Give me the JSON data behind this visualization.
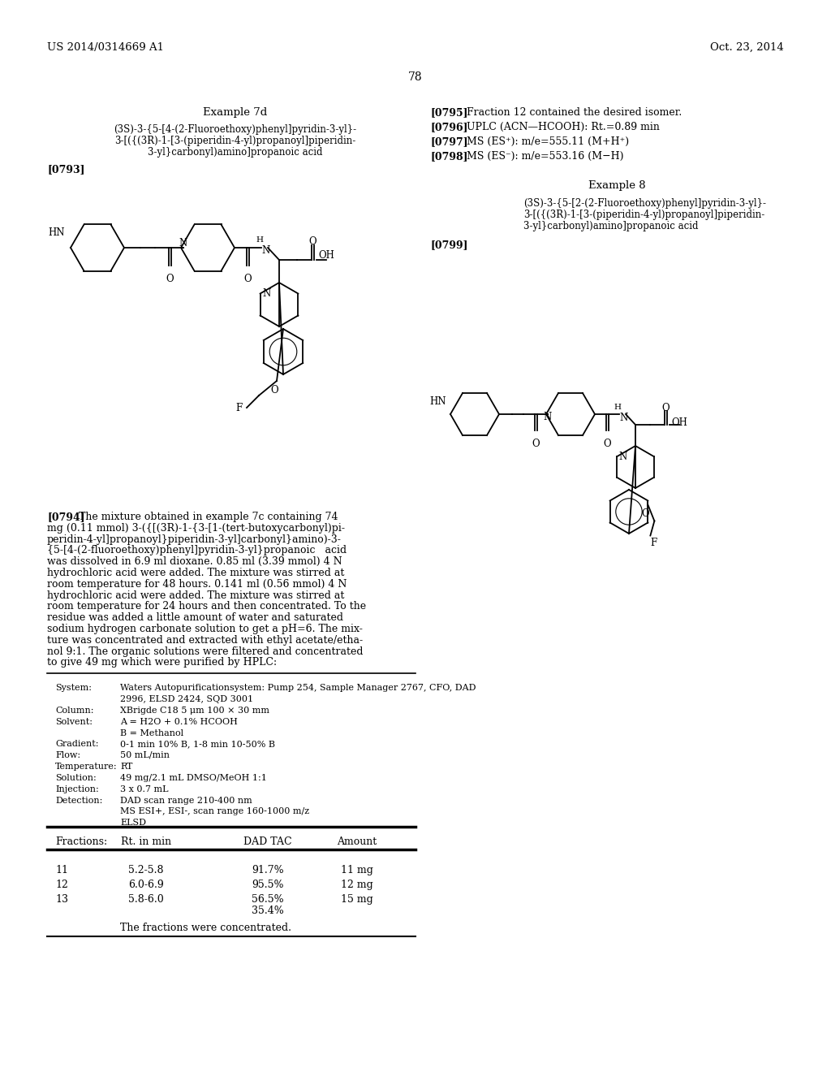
{
  "page_header_left": "US 2014/0314669 A1",
  "page_header_right": "Oct. 23, 2014",
  "page_number": "78",
  "example7d_title": "Example 7d",
  "example7d_line1": "(3S)-3-{5-[4-(2-Fluoroethoxy)phenyl]pyridin-3-yl}-",
  "example7d_line2": "3-[({(3R)-1-[3-(piperidin-4-yl)propanoyl]piperidin-",
  "example7d_line3": "3-yl}carbonyl)amino]propanoic acid",
  "ref793": "[0793]",
  "ref795_bold": "[0795]",
  "ref795_text": "   Fraction 12 contained the desired isomer.",
  "ref796_bold": "[0796]",
  "ref796_text": "   UPLC (ACN—HCOOH): Rt.=0.89 min",
  "ref797_bold": "[0797]",
  "ref797_text": "   MS (ES+): m/e=555.11 (M+H+)",
  "ref798_bold": "[0798]",
  "ref798_text": "   MS (ES-): m/e=553.16 (M-H)",
  "example8_title": "Example 8",
  "example8_line1": "(3S)-3-{5-[2-(2-Fluoroethoxy)phenyl]pyridin-3-yl}-",
  "example8_line2": "3-[({(3R)-1-[3-(piperidin-4-yl)propanoyl]piperidin-",
  "example8_line3": "3-yl}carbonyl)amino]propanoic acid",
  "ref799": "[0799]",
  "ref794_bold": "[0794]",
  "ref794_lines": [
    "  The mixture obtained in example 7c containing 74",
    "mg (0.11 mmol) 3-({[(3R)-1-{3-[1-(tert-butoxycarbonyl)pi-",
    "peridin-4-yl]propanoyl}piperidin-3-yl]carbonyl}amino)-3-",
    "{5-[4-(2-fluoroethoxy)phenyl]pyridin-3-yl}propanoic   acid",
    "was dissolved in 6.9 ml dioxane. 0.85 ml (3.39 mmol) 4 N",
    "hydrochloric acid were added. The mixture was stirred at",
    "room temperature for 48 hours. 0.141 ml (0.56 mmol) 4 N",
    "hydrochloric acid were added. The mixture was stirred at",
    "room temperature for 24 hours and then concentrated. To the",
    "residue was added a little amount of water and saturated",
    "sodium hydrogen carbonate solution to get a pH=6. The mix-",
    "ture was concentrated and extracted with ethyl acetate/etha-",
    "nol 9:1. The organic solutions were filtered and concentrated",
    "to give 49 mg which were purified by HPLC:"
  ],
  "system_label": "System:",
  "system_value1": "Waters Autopurificationsystem: Pump 254, Sample Manager 2767, CFO, DAD",
  "system_value2": "2996, ELSD 2424, SQD 3001",
  "column_label": "Column:",
  "column_value": "XBrigde C18 5 μm 100 × 30 mm",
  "solvent_label": "Solvent:",
  "solvent_value1": "A = H2O + 0.1% HCOOH",
  "solvent_value2": "B = Methanol",
  "gradient_label": "Gradient:",
  "gradient_value": "0-1 min 10% B, 1-8 min 10-50% B",
  "flow_label": "Flow:",
  "flow_value": "50 mL/min",
  "temperature_label": "Temperature:",
  "temperature_value": "RT",
  "solution_label": "Solution:",
  "solution_value": "49 mg/2.1 mL DMSO/MeOH 1:1",
  "injection_label": "Injection:",
  "injection_value": "3 x 0.7 mL",
  "detection_label": "Detection:",
  "detection_value1": "DAD scan range 210-400 nm",
  "detection_value2": "MS ESI+, ESI-, scan range 160-1000 m/z",
  "detection_value3": "ELSD",
  "table_headers": [
    "Fractions:",
    "Rt. in min",
    "DAD TAC",
    "Amount"
  ],
  "table_row1": [
    "11",
    "5.2-5.8",
    "91.7%",
    "11 mg"
  ],
  "table_row2": [
    "12",
    "6.0-6.9",
    "95.5%",
    "12 mg"
  ],
  "table_row3": [
    "13",
    "5.8-6.0",
    "56.5%",
    "15 mg"
  ],
  "table_row3b": [
    "",
    "",
    "35.4%",
    ""
  ],
  "table_footer": "The fractions were concentrated.",
  "bg_color": "#ffffff",
  "text_color": "#000000"
}
